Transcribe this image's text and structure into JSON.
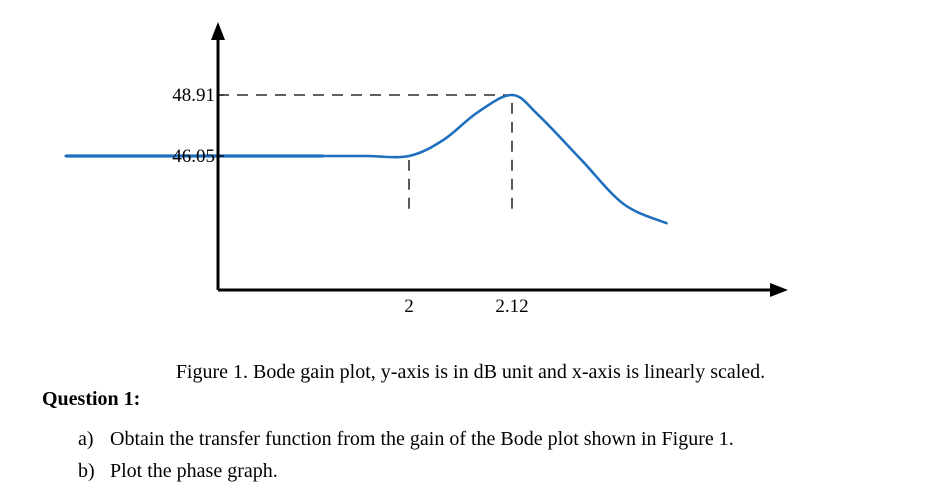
{
  "chart_data": {
    "type": "line",
    "title": "",
    "xlabel": "",
    "ylabel": "",
    "x_ticks": [
      {
        "value": 2,
        "label": "2"
      },
      {
        "value": 2.12,
        "label": "2.12"
      }
    ],
    "y_ticks": [
      {
        "value": 46.05,
        "label": "46.05"
      },
      {
        "value": 48.91,
        "label": "48.91"
      }
    ],
    "series": [
      {
        "color": "#1f6fbf",
        "x": [
          1.6,
          1.9,
          1.95,
          2.0,
          2.04,
          2.08,
          2.12,
          2.15,
          2.2,
          2.25,
          2.3
        ],
        "y": [
          46.05,
          46.05,
          46.05,
          46.05,
          46.8,
          48.1,
          48.91,
          48.0,
          45.9,
          43.8,
          42.9
        ]
      }
    ],
    "annotations": [
      {
        "type": "dashed-hline",
        "y": 48.91,
        "x_from": 1.6,
        "x_to": 2.12
      },
      {
        "type": "dashed-vline",
        "x": 2.0,
        "y_from": 43.2,
        "y_to": 46.05
      },
      {
        "type": "dashed-vline",
        "x": 2.12,
        "y_from": 43.2,
        "y_to": 48.91
      }
    ],
    "axes": {
      "style": "arrows",
      "grid": false,
      "x_baseline": 43.2
    }
  },
  "caption": "Figure 1. Bode gain plot, y-axis is in dB unit and x-axis is linearly scaled.",
  "question": {
    "title": "Question 1:",
    "items": [
      {
        "marker": "a)",
        "text": "Obtain the transfer function from the gain of the Bode plot shown in Figure 1."
      },
      {
        "marker": "b)",
        "text": "Plot the phase graph."
      }
    ]
  }
}
